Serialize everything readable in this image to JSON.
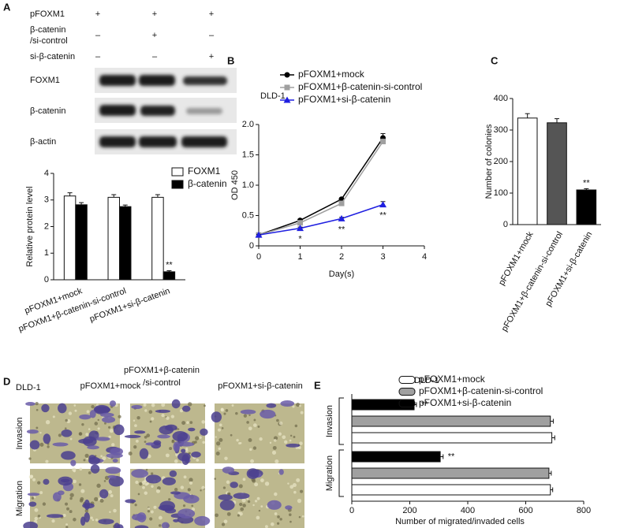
{
  "panels": [
    "A",
    "B",
    "C",
    "D",
    "E"
  ],
  "blot": {
    "conditions": [
      {
        "label": [
          "pFOXM1"
        ],
        "marks": [
          "+",
          "+",
          "+"
        ]
      },
      {
        "label": [
          "β-catenin",
          "/si-control"
        ],
        "marks": [
          "–",
          "+",
          "–"
        ]
      },
      {
        "label": [
          "si-β-catenin"
        ],
        "marks": [
          "–",
          "–",
          "+"
        ]
      }
    ],
    "rows": [
      "FOXM1",
      "β-catenin",
      "β-actin"
    ]
  },
  "micrographs": {
    "cell_line": "DLD-1",
    "columns": [
      [
        "pFOXM1+mock"
      ],
      [
        "pFOXM1+β-catenin",
        "/si-control"
      ],
      [
        "pFOXM1+si-β-catenin"
      ]
    ],
    "rows": [
      "Invasion",
      "Migration"
    ]
  },
  "chart_data": [
    {
      "type": "bar",
      "categories": [
        "pFOXM1+mock",
        "pFOXM1+β-catenin-si-control",
        "pFOXM1+si-β-catenin"
      ],
      "series": [
        {
          "name": "FOXM1",
          "color": "#ffffff",
          "values": [
            3.15,
            3.1,
            3.1
          ],
          "errors": [
            0.12,
            0.1,
            0.1
          ]
        },
        {
          "name": "β-catenin",
          "color": "#000000",
          "values": [
            2.82,
            2.75,
            0.3
          ],
          "errors": [
            0.08,
            0.06,
            0.04
          ],
          "annotations": [
            null,
            null,
            "**"
          ]
        }
      ],
      "ylabel": "Relative protein level",
      "ylim": [
        0,
        4
      ],
      "yticks": [
        0,
        1,
        2,
        3,
        4
      ],
      "legend": "top-right"
    },
    {
      "type": "line",
      "title": "DLD-1",
      "x": [
        0,
        1,
        2,
        3
      ],
      "series": [
        {
          "name": "pFOXM1+mock",
          "color": "#000000",
          "marker": "circle",
          "values": [
            0.18,
            0.42,
            0.77,
            1.78
          ],
          "errors": [
            0.01,
            0.02,
            0.02,
            0.07
          ]
        },
        {
          "name": "pFOXM1+β-catenin-si-control",
          "color": "#a0a0a0",
          "marker": "square",
          "values": [
            0.18,
            0.38,
            0.7,
            1.72
          ],
          "errors": [
            0.01,
            0.02,
            0.02,
            0.06
          ]
        },
        {
          "name": "pFOXM1+si-β-catenin",
          "color": "#1f1fe0",
          "marker": "triangle",
          "values": [
            0.18,
            0.29,
            0.45,
            0.68
          ],
          "errors": [
            0.01,
            0.02,
            0.02,
            0.05
          ],
          "annotations": [
            null,
            "*",
            "**",
            "**"
          ]
        }
      ],
      "xlabel": "Day(s)",
      "ylabel": "OD 450",
      "xlim": [
        0,
        4
      ],
      "xticks": [
        0,
        1,
        2,
        3,
        4
      ],
      "ylim": [
        0,
        2.0
      ],
      "yticks": [
        0,
        0.5,
        {
          "value": 1.0,
          "label": "1.0"
        },
        1.5,
        {
          "value": 2.0,
          "label": "2.0"
        }
      ],
      "legend": "top-left"
    },
    {
      "type": "bar",
      "categories": [
        "pFOXM1+mock",
        "pFOXM1+β-catenin-si-control",
        "pFOXM1+si-β-catenin"
      ],
      "values": [
        338,
        323,
        110
      ],
      "errors": [
        14,
        13,
        4
      ],
      "colors": [
        "#ffffff",
        "#555555",
        "#000000"
      ],
      "annotations": [
        null,
        null,
        "**"
      ],
      "ylabel": "Number of colonies",
      "ylim": [
        0,
        400
      ],
      "yticks": [
        0,
        100,
        200,
        300,
        400
      ]
    },
    {
      "type": "barh",
      "title": "DLD-1",
      "categories": [
        "Invasion",
        "Migration"
      ],
      "series": [
        {
          "name": "pFOXM1+mock",
          "color": "#ffffff",
          "values": [
            690,
            685
          ],
          "errors": [
            10,
            8
          ]
        },
        {
          "name": "pFOXM1+β-catenin-si-control",
          "color": "#a0a0a0",
          "values": [
            685,
            680
          ],
          "errors": [
            10,
            8
          ]
        },
        {
          "name": "pFOXM1+si-β-catenin",
          "color": "#000000",
          "values": [
            215,
            305
          ],
          "errors": [
            8,
            10
          ],
          "annotations": [
            "**",
            "**"
          ]
        }
      ],
      "xlabel": "Number of migrated/invaded cells",
      "xlim": [
        0,
        800
      ],
      "xticks": [
        0,
        200,
        400,
        600,
        800
      ],
      "legend": "top-right"
    }
  ]
}
